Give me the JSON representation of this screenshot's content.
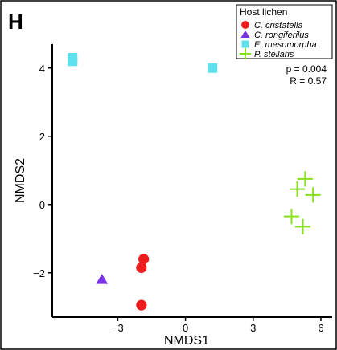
{
  "panel_label": "H",
  "chart_data": {
    "type": "scatter",
    "xlabel": "NMDS1",
    "ylabel": "NMDS2",
    "xlim": [
      -5.9,
      6.5
    ],
    "ylim": [
      -3.3,
      4.7
    ],
    "xticks": [
      -3,
      0,
      3,
      6
    ],
    "xtick_labels": [
      "−3",
      "0",
      "3",
      "6"
    ],
    "yticks": [
      -2,
      0,
      2,
      4
    ],
    "ytick_labels": [
      "−2",
      "0",
      "2",
      "4"
    ],
    "grid": false,
    "legend_title": "Host lichen",
    "legend_position": "top-right",
    "annotations": [
      "p = 0.004",
      "R = 0.57"
    ],
    "series": [
      {
        "name": "C. cristatella",
        "marker": "circle",
        "color": "#ee1c1c",
        "points": [
          [
            -1.85,
            -1.6
          ],
          [
            -1.95,
            -1.85
          ],
          [
            -1.95,
            -2.95
          ]
        ]
      },
      {
        "name": "C. rongiferilus",
        "marker": "triangle",
        "color": "#7b33e6",
        "points": [
          [
            -3.7,
            -2.2
          ]
        ]
      },
      {
        "name": "E. mesomorpha",
        "marker": "square",
        "color": "#5ee0ee",
        "points": [
          [
            -5.0,
            4.3
          ],
          [
            -5.0,
            4.2
          ],
          [
            1.2,
            4.0
          ]
        ]
      },
      {
        "name": "P. stellaris",
        "marker": "plus",
        "color": "#88e01c",
        "points": [
          [
            5.3,
            0.75
          ],
          [
            4.95,
            0.45
          ],
          [
            5.65,
            0.28
          ],
          [
            4.7,
            -0.35
          ],
          [
            5.2,
            -0.65
          ]
        ]
      }
    ]
  }
}
